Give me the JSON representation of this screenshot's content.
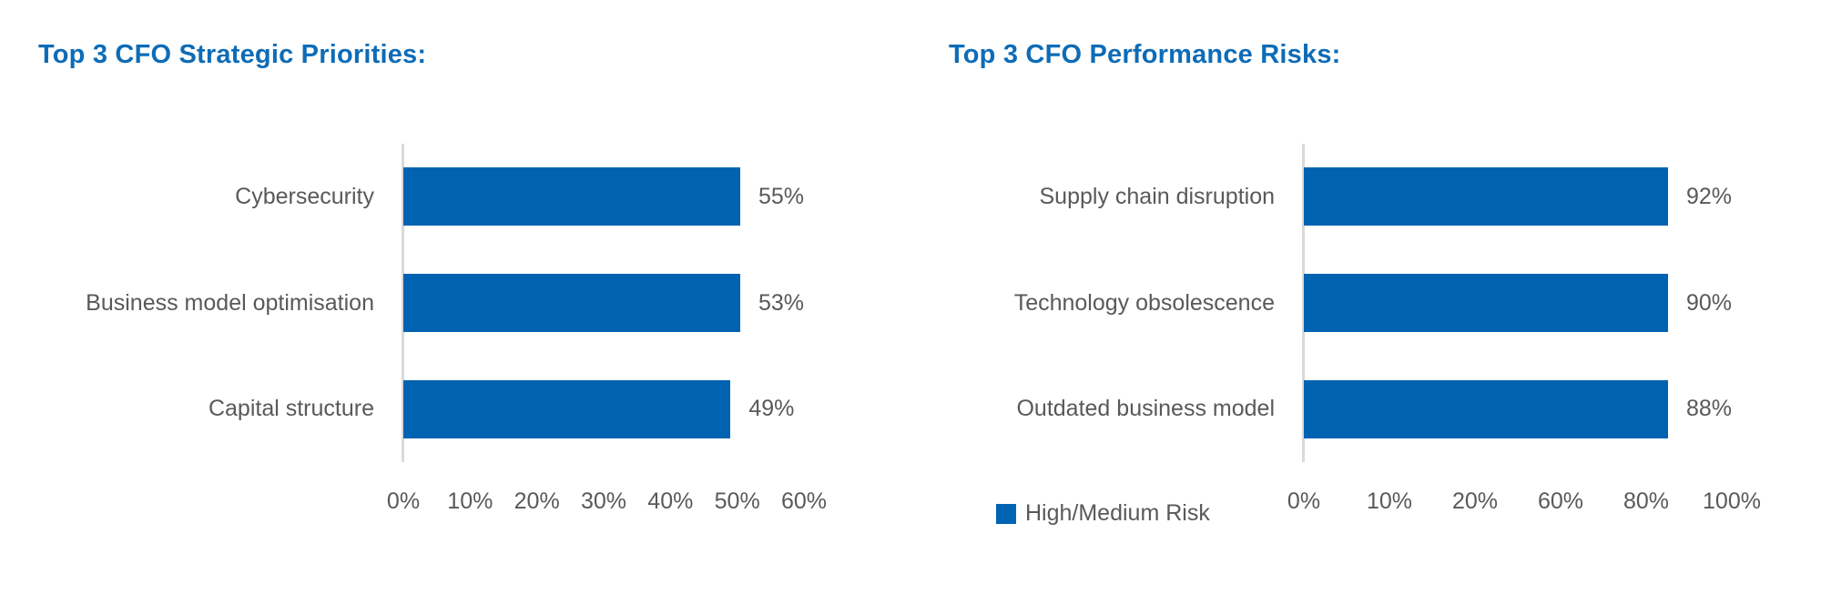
{
  "colors": {
    "bar": "#0063B1",
    "title": "#0D6CB7",
    "text": "#595959",
    "axis_line": "#D9D9D9",
    "background": "#FFFFFF"
  },
  "chart_data": [
    {
      "type": "bar",
      "orientation": "horizontal",
      "title": "Top 3 CFO Strategic Priorities:",
      "categories": [
        "Cybersecurity",
        "Business model optimisation",
        "Capital structure"
      ],
      "values": [
        55,
        53,
        49
      ],
      "value_labels": [
        "55%",
        "53%",
        "49%"
      ],
      "unit": "%",
      "xlim": [
        0,
        60
      ],
      "tick_labels": [
        "0%",
        "10%",
        "20%",
        "30%",
        "40%",
        "50%",
        "60%"
      ],
      "grid": false,
      "bar_color": "#0063B1"
    },
    {
      "type": "bar",
      "orientation": "horizontal",
      "title": "Top 3 CFO Performance Risks:",
      "categories": [
        "Supply chain disruption",
        "Technology obsolescence",
        "Outdated business model"
      ],
      "values": [
        92,
        90,
        88
      ],
      "value_labels": [
        "92%",
        "90%",
        "88%"
      ],
      "unit": "%",
      "xlim": [
        0,
        100
      ],
      "tick_labels": [
        "0%",
        "10%",
        "20%",
        "60%",
        "80%",
        "100%"
      ],
      "grid": false,
      "bar_color": "#0063B1",
      "legend": {
        "label": "High/Medium Risk",
        "position": "bottom-left"
      }
    }
  ]
}
